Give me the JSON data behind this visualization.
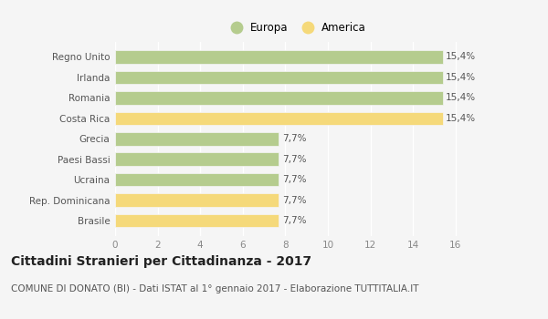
{
  "categories": [
    "Brasile",
    "Rep. Dominicana",
    "Ucraina",
    "Paesi Bassi",
    "Grecia",
    "Costa Rica",
    "Romania",
    "Irlanda",
    "Regno Unito"
  ],
  "values": [
    7.7,
    7.7,
    7.7,
    7.7,
    7.7,
    15.4,
    15.4,
    15.4,
    15.4
  ],
  "colors": [
    "#f5d97a",
    "#f5d97a",
    "#b5cc8e",
    "#b5cc8e",
    "#b5cc8e",
    "#f5d97a",
    "#b5cc8e",
    "#b5cc8e",
    "#b5cc8e"
  ],
  "labels": [
    "7,7%",
    "7,7%",
    "7,7%",
    "7,7%",
    "7,7%",
    "15,4%",
    "15,4%",
    "15,4%",
    "15,4%"
  ],
  "legend": [
    {
      "label": "Europa",
      "color": "#b5cc8e"
    },
    {
      "label": "America",
      "color": "#f5d97a"
    }
  ],
  "xlim": [
    0,
    17
  ],
  "xticks": [
    0,
    2,
    4,
    6,
    8,
    10,
    12,
    14,
    16
  ],
  "title": "Cittadini Stranieri per Cittadinanza - 2017",
  "subtitle": "COMUNE DI DONATO (BI) - Dati ISTAT al 1° gennaio 2017 - Elaborazione TUTTITALIA.IT",
  "bg_color": "#f5f5f5",
  "bar_edge_color": "#f5f5f5",
  "grid_color": "white",
  "title_fontsize": 10,
  "subtitle_fontsize": 7.5,
  "label_fontsize": 7.5,
  "tick_fontsize": 7.5,
  "legend_fontsize": 8.5
}
